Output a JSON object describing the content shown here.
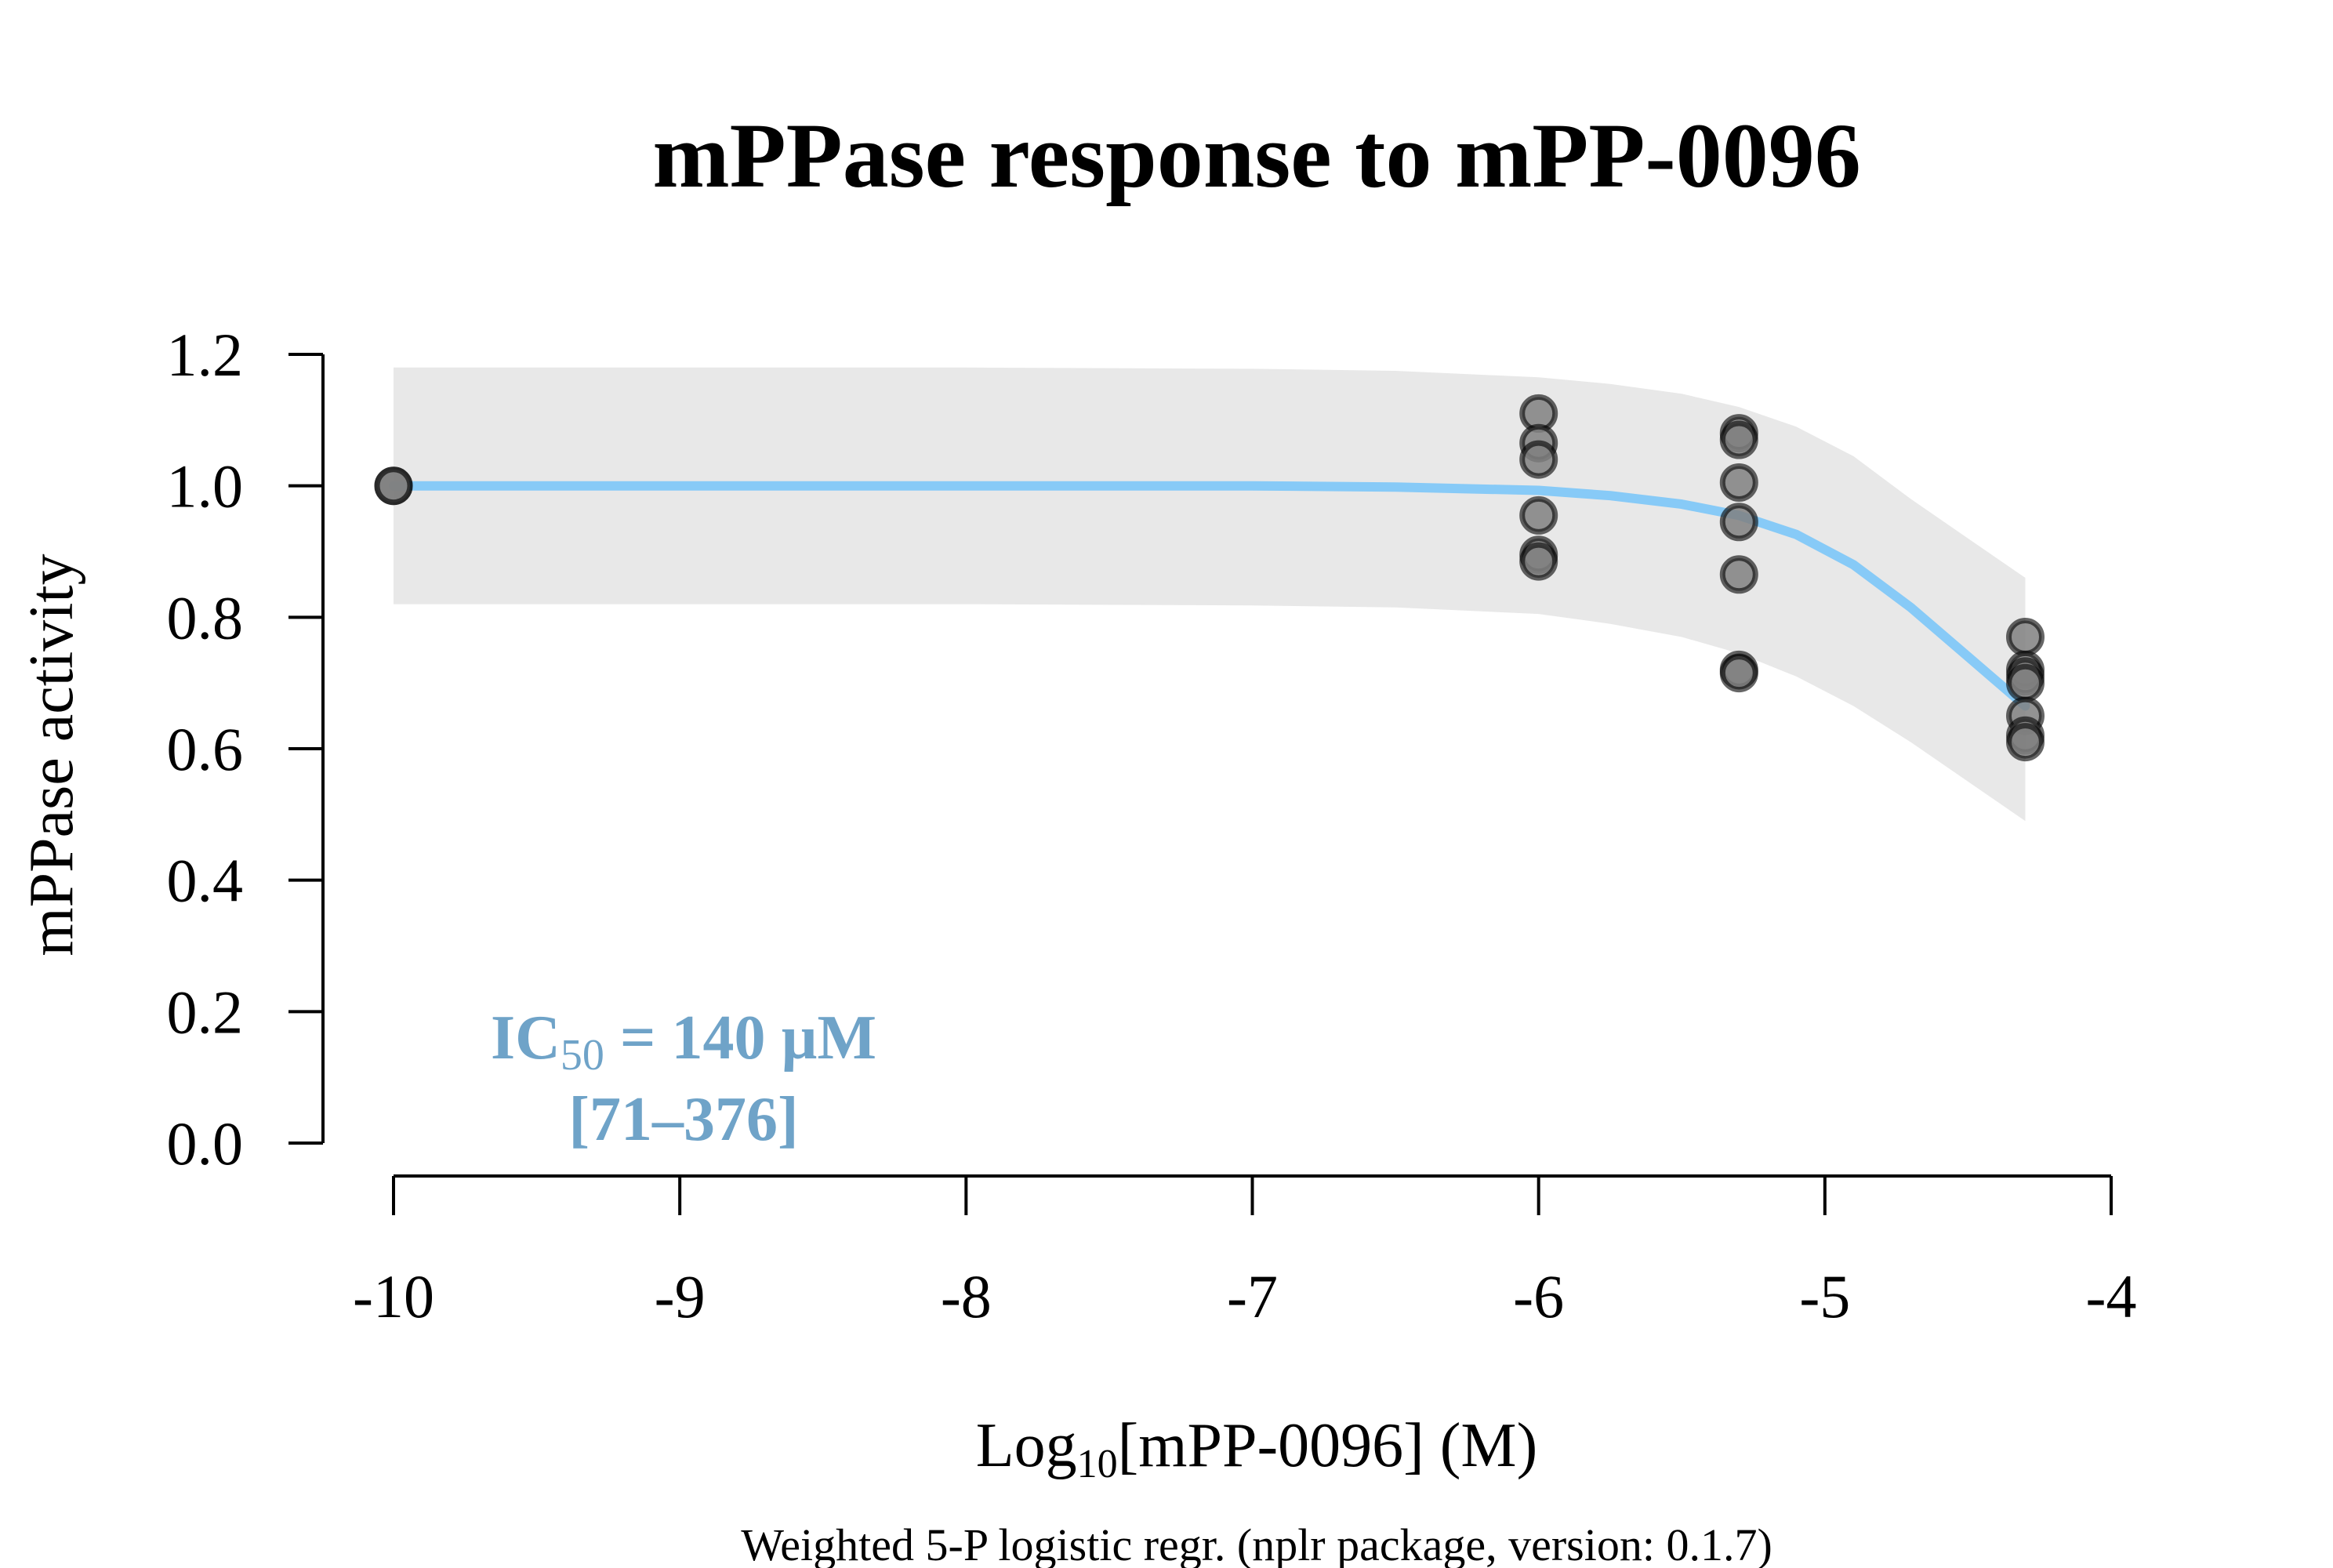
{
  "chart_data": {
    "type": "scatter",
    "title": "mPPase response to mPP-0096",
    "xlabel": {
      "prefix": "Log",
      "subscript": "10",
      "suffix": "[mPP-0096] (M)"
    },
    "ylabel": "mPPase activity",
    "footnote": "Weighted 5-P logistic regr. (nplr package, version: 0.1.7)",
    "annotation": {
      "ic_main": "IC",
      "ic_sub": "50",
      "ic_value": " = 140 µM",
      "ci": "[71–376]",
      "color": "#6FA3C8"
    },
    "xlim": [
      -10,
      -4
    ],
    "ylim": [
      0,
      1.2
    ],
    "x_ticks": [
      -10,
      -9,
      -8,
      -7,
      -6,
      -5,
      -4
    ],
    "x_tick_labels": [
      "-10",
      "-9",
      "-8",
      "-7",
      "-6",
      "-5",
      "-4"
    ],
    "y_ticks": [
      0,
      0.2,
      0.4,
      0.6,
      0.8,
      1.0,
      1.2
    ],
    "y_tick_labels": [
      "0.0",
      "0.2",
      "0.4",
      "0.6",
      "0.8",
      "1.0",
      "1.2"
    ],
    "grid": false,
    "points": [
      {
        "x": -10,
        "y": 1.0
      },
      {
        "x": -10,
        "y": 1.0
      },
      {
        "x": -6,
        "y": 1.11
      },
      {
        "x": -6,
        "y": 1.065
      },
      {
        "x": -6,
        "y": 1.04
      },
      {
        "x": -6,
        "y": 0.955
      },
      {
        "x": -6,
        "y": 0.895
      },
      {
        "x": -6,
        "y": 0.885
      },
      {
        "x": -5.3,
        "y": 1.08
      },
      {
        "x": -5.3,
        "y": 1.07
      },
      {
        "x": -5.3,
        "y": 1.005
      },
      {
        "x": -5.3,
        "y": 0.945
      },
      {
        "x": -5.3,
        "y": 0.865
      },
      {
        "x": -5.3,
        "y": 0.72
      },
      {
        "x": -5.3,
        "y": 0.715
      },
      {
        "x": -4.3,
        "y": 0.77
      },
      {
        "x": -4.3,
        "y": 0.72
      },
      {
        "x": -4.3,
        "y": 0.71
      },
      {
        "x": -4.3,
        "y": 0.7
      },
      {
        "x": -4.3,
        "y": 0.65
      },
      {
        "x": -4.3,
        "y": 0.62
      },
      {
        "x": -4.3,
        "y": 0.61
      }
    ],
    "point_fill": "#808080",
    "point_stroke": "#000000",
    "fit_curve": {
      "color": "#87CAF7",
      "x": [
        -10,
        -9,
        -8,
        -7,
        -6.5,
        -6,
        -5.75,
        -5.5,
        -5.3,
        -5.1,
        -4.9,
        -4.7,
        -4.5,
        -4.3
      ],
      "y": [
        1.0,
        1.0,
        1.0,
        1.0,
        0.998,
        0.993,
        0.985,
        0.972,
        0.955,
        0.926,
        0.88,
        0.815,
        0.74,
        0.665
      ]
    },
    "confidence_band": {
      "color": "#E8E8E8",
      "x": [
        -10,
        -8,
        -7,
        -6.5,
        -6,
        -5.75,
        -5.5,
        -5.3,
        -5.1,
        -4.9,
        -4.7,
        -4.5,
        -4.3
      ],
      "upper": [
        1.18,
        1.18,
        1.178,
        1.175,
        1.165,
        1.155,
        1.14,
        1.12,
        1.09,
        1.045,
        0.98,
        0.92,
        0.86
      ],
      "lower": [
        0.82,
        0.82,
        0.818,
        0.815,
        0.805,
        0.79,
        0.77,
        0.745,
        0.71,
        0.665,
        0.61,
        0.55,
        0.49
      ]
    }
  }
}
